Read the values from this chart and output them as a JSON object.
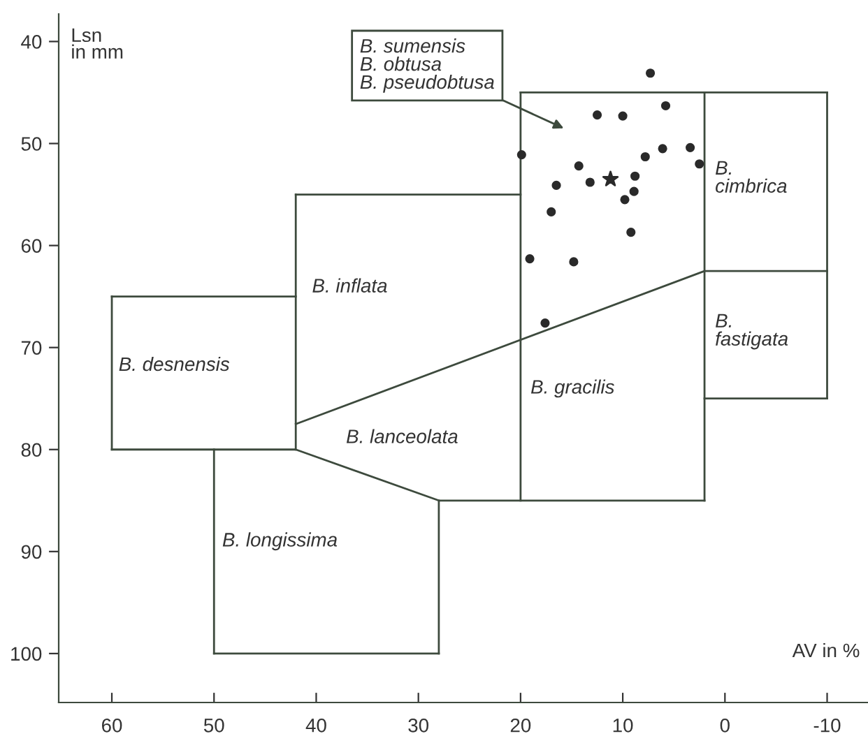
{
  "chart_data": {
    "type": "scatter",
    "xlabel": "AV in %",
    "ylabel": "Lsn\nin mm",
    "xlim": [
      65.2,
      -14
    ],
    "ylim": [
      104.8,
      37.3
    ],
    "xticks": [
      60,
      50,
      40,
      30,
      20,
      10,
      0,
      -10
    ],
    "yticks": [
      40,
      50,
      60,
      70,
      80,
      90,
      100
    ],
    "grid": false,
    "legend": false,
    "series": [
      {
        "type": "line",
        "color": "#3d4a3d",
        "marker": "none",
        "x": [
          60,
          42
        ],
        "values": [
          65,
          65
        ]
      },
      {
        "type": "line",
        "color": "#3d4a3d",
        "marker": "none",
        "x": [
          60,
          60
        ],
        "values": [
          65,
          80
        ]
      },
      {
        "type": "line",
        "color": "#3d4a3d",
        "marker": "none",
        "x": [
          60,
          42,
          28,
          2
        ],
        "values": [
          80,
          80,
          85,
          85
        ]
      },
      {
        "type": "line",
        "color": "#3d4a3d",
        "marker": "none",
        "x": [
          42,
          42
        ],
        "values": [
          55,
          80
        ]
      },
      {
        "type": "line",
        "color": "#3d4a3d",
        "marker": "none",
        "x": [
          42,
          20
        ],
        "values": [
          55,
          55
        ]
      },
      {
        "type": "line",
        "color": "#3d4a3d",
        "marker": "none",
        "x": [
          42,
          2,
          -10
        ],
        "values": [
          77.5,
          62.5,
          62.5
        ]
      },
      {
        "type": "line",
        "color": "#3d4a3d",
        "marker": "none",
        "x": [
          28,
          28
        ],
        "values": [
          85,
          100
        ]
      },
      {
        "type": "line",
        "color": "#3d4a3d",
        "marker": "none",
        "x": [
          28,
          50
        ],
        "values": [
          100,
          100
        ]
      },
      {
        "type": "line",
        "color": "#3d4a3d",
        "marker": "none",
        "x": [
          50,
          50
        ],
        "values": [
          100,
          80
        ]
      },
      {
        "type": "line",
        "color": "#3d4a3d",
        "marker": "none",
        "x": [
          20,
          20
        ],
        "values": [
          45,
          85
        ]
      },
      {
        "type": "line",
        "color": "#3d4a3d",
        "marker": "none",
        "x": [
          20,
          -10
        ],
        "values": [
          45,
          45
        ]
      },
      {
        "type": "line",
        "color": "#3d4a3d",
        "marker": "none",
        "x": [
          2,
          2
        ],
        "values": [
          45,
          85
        ]
      },
      {
        "type": "line",
        "color": "#3d4a3d",
        "marker": "none",
        "x": [
          -10,
          -10
        ],
        "values": [
          45,
          75
        ]
      },
      {
        "type": "line",
        "color": "#3d4a3d",
        "marker": "none",
        "x": [
          2,
          -10
        ],
        "values": [
          75,
          75
        ]
      },
      {
        "color": "#2a2a2a",
        "marker": "circle",
        "x": [
          7.3,
          5.8,
          12.5,
          10.0,
          19.9,
          6.1,
          3.4,
          7.8,
          2.5,
          14.3,
          16.5,
          13.2,
          8.8,
          8.9,
          9.8,
          17.0,
          9.2,
          19.1,
          14.8,
          17.6
        ],
        "values": [
          43.1,
          46.3,
          47.2,
          47.3,
          51.1,
          50.5,
          50.4,
          51.3,
          52.0,
          52.2,
          54.1,
          53.8,
          53.2,
          54.7,
          55.5,
          56.7,
          58.7,
          61.3,
          61.6,
          67.6
        ]
      },
      {
        "color": "#2a2a2a",
        "marker": "star",
        "x": [
          11.2
        ],
        "values": [
          53.5
        ]
      }
    ],
    "annotations": [
      "B. desnensis",
      "B. inflata",
      "B. lanceolata",
      "B. gracilis",
      "B. longissima",
      "B.\ncimbrica",
      "B.\nfastigata",
      "B. sumensis\nB. obtusa\nB. pseudobtusa"
    ]
  }
}
